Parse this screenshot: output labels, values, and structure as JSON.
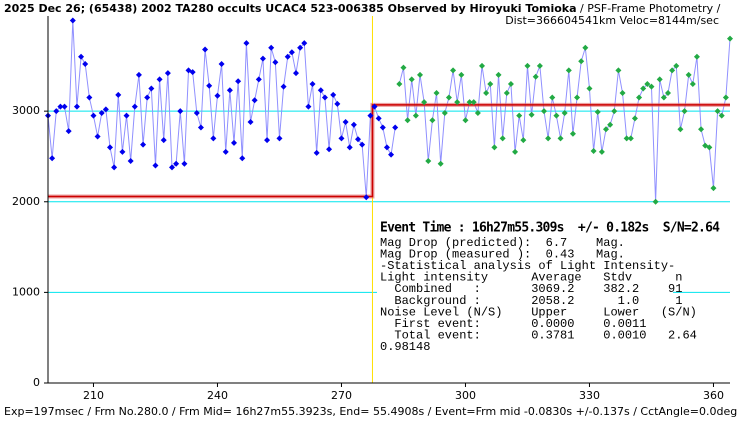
{
  "chart_data": {
    "type": "line",
    "title": "2025 Dec 26; (65438) 2002 TA280 occults UCAC4 523-006385 Observed by Hiroyuki Tomioka",
    "title_suffix": " / PSF-Frame Photometry /",
    "subtitle": "Dist=366604541km Veloc=8144m/sec",
    "footer": "Exp=197msec / Frm No.280.0 / Frm Mid= 16h27m55.3923s,  End= 55.4908s / Event=Frm mid -0.0830s +/-0.137s / CctAngle=0.0deg",
    "annotation_lines": [
      "Event Time : 16h27m55.309s  +/- 0.182s  S/N=2.64",
      "Mag Drop (predicted):  6.7    Mag.",
      "Mag Drop (measured ):  0.43   Mag.",
      "-Statistical analysis of Light Intensity-",
      "Light intensity      Average   Stdv      n",
      "  Combined   :       3069.2    382.2    91",
      "  Background :       2058.2      1.0     1",
      "Noise Level (N/S)    Upper     Lower   (S/N)",
      "  First event:       0.0000    0.0011",
      "  Total event:       0.3781    0.0010   2.64",
      "0.98148"
    ],
    "xlim": [
      199,
      364
    ],
    "ylim": [
      0,
      4050
    ],
    "xticks": [
      210,
      240,
      270,
      300,
      330,
      360
    ],
    "yticks": [
      0,
      1000,
      2000,
      3000
    ],
    "grid": true,
    "grid_color": "#00e5ee",
    "event_line": {
      "x": 277.5,
      "color": "#ffe000"
    },
    "series": [
      {
        "color": "#0000ee",
        "line_color": "#9090ff",
        "marker": "diamond",
        "x": [
          199,
          200,
          201,
          202,
          203,
          204,
          205,
          206,
          207,
          208,
          209,
          210,
          211,
          212,
          213,
          214,
          215,
          216,
          217,
          218,
          219,
          220,
          221,
          222,
          223,
          224,
          225,
          226,
          227,
          228,
          229,
          230,
          231,
          232,
          233,
          234,
          235,
          236,
          237,
          238,
          239,
          240,
          241,
          242,
          243,
          244,
          245,
          246,
          247,
          248,
          249,
          250,
          251,
          252,
          253,
          254,
          255,
          256,
          257,
          258,
          259,
          260,
          261,
          262,
          263,
          264,
          265,
          266,
          267,
          268,
          269,
          270,
          271,
          272,
          273,
          274,
          275,
          276,
          277,
          278,
          279,
          280,
          281,
          282,
          283
        ],
        "values": [
          2950,
          2480,
          3000,
          3050,
          3050,
          2780,
          4000,
          3050,
          3600,
          3520,
          3150,
          2950,
          2720,
          2980,
          3020,
          2600,
          2380,
          3180,
          2550,
          2950,
          2450,
          3050,
          3400,
          2630,
          3150,
          3250,
          2400,
          3350,
          2680,
          3420,
          2380,
          2420,
          3000,
          2420,
          3450,
          3430,
          2980,
          2820,
          3680,
          3280,
          2700,
          3170,
          3520,
          2550,
          3230,
          2650,
          3330,
          2480,
          3750,
          2880,
          3120,
          3350,
          3580,
          2680,
          3700,
          3540,
          2700,
          3270,
          3600,
          3650,
          3420,
          3700,
          3750,
          3050,
          3300,
          2540,
          3230,
          3150,
          2580,
          3180,
          3080,
          2700,
          2880,
          2600,
          2850,
          2690,
          2630,
          2050,
          2950,
          3050,
          2920,
          2820,
          2600,
          2520,
          2820
        ]
      },
      {
        "color": "#22aa44",
        "line_color": "#9090ff",
        "marker": "diamond",
        "x": [
          284,
          285,
          286,
          287,
          288,
          289,
          290,
          291,
          292,
          293,
          294,
          295,
          296,
          297,
          298,
          299,
          300,
          301,
          302,
          303,
          304,
          305,
          306,
          307,
          308,
          309,
          310,
          311,
          312,
          313,
          314,
          315,
          316,
          317,
          318,
          319,
          320,
          321,
          322,
          323,
          324,
          325,
          326,
          327,
          328,
          329,
          330,
          331,
          332,
          333,
          334,
          335,
          336,
          337,
          338,
          339,
          340,
          341,
          342,
          343,
          344,
          345,
          346,
          347,
          348,
          349,
          350,
          351,
          352,
          353,
          354,
          355,
          356,
          357,
          358,
          359,
          360,
          361,
          362,
          363,
          364
        ],
        "values": [
          3300,
          3480,
          2900,
          3350,
          2950,
          3400,
          3100,
          2450,
          2900,
          3200,
          2420,
          2980,
          3150,
          3450,
          3100,
          3400,
          2900,
          3100,
          3100,
          2980,
          3500,
          3200,
          3300,
          2600,
          3400,
          2700,
          3200,
          3300,
          2550,
          2950,
          2680,
          3500,
          2960,
          3380,
          3500,
          3000,
          2700,
          3150,
          2950,
          2700,
          2980,
          3450,
          2750,
          3150,
          3550,
          3700,
          3250,
          2560,
          2990,
          2550,
          2800,
          2850,
          3000,
          3450,
          3200,
          2700,
          2700,
          2920,
          3150,
          3250,
          3300,
          3270,
          2000,
          3350,
          3150,
          3200,
          3450,
          3500,
          2800,
          3000,
          3400,
          3300,
          3600,
          2800,
          2620,
          2600,
          2150,
          3000,
          2950,
          3150,
          3800
        ]
      },
      {
        "color": "#cc0000",
        "line_color": "#e06060",
        "marker": "none",
        "x": [
          199,
          277.5,
          277.5,
          364
        ],
        "values": [
          2058.2,
          2058.2,
          3069.2,
          3069.2
        ]
      }
    ]
  }
}
